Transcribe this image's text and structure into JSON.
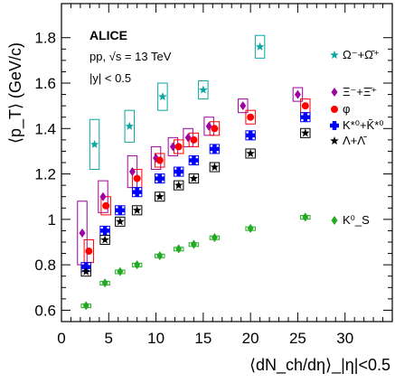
{
  "chart_data": {
    "type": "scatter",
    "title": "",
    "xlabel": "⟨dN_ch/dη⟩_|η|<0.5",
    "ylabel": "⟨p_T⟩ (GeV/c)",
    "xlim": [
      0,
      35
    ],
    "ylim": [
      0.55,
      1.95
    ],
    "x_ticks": [
      0,
      5,
      10,
      15,
      20,
      25,
      30
    ],
    "y_ticks": [
      0.6,
      0.8,
      1.0,
      1.2,
      1.4,
      1.6,
      1.8
    ],
    "y_tick_labels": [
      "0.6",
      "0.8",
      "1",
      "1.2",
      "1.4",
      "1.6",
      "1.8"
    ],
    "annotations": [
      "ALICE",
      "pp, √s = 13 TeV",
      "|y| < 0.5"
    ],
    "legend_position": "right",
    "series": [
      {
        "name": "Ω⁻+Ω̄⁺",
        "color": "#0aa6a0",
        "marker": "star",
        "points": [
          {
            "x": 3.5,
            "y": 1.33,
            "sysx": 0.5,
            "sysy": 0.11
          },
          {
            "x": 7.2,
            "y": 1.41,
            "sysx": 0.5,
            "sysy": 0.07
          },
          {
            "x": 10.7,
            "y": 1.54,
            "sysx": 0.5,
            "sysy": 0.06
          },
          {
            "x": 15.0,
            "y": 1.57,
            "sysx": 0.5,
            "sysy": 0.04
          },
          {
            "x": 21.0,
            "y": 1.76,
            "sysx": 0.5,
            "sysy": 0.05
          }
        ]
      },
      {
        "name": "Ξ⁻+Ξ̄⁺",
        "color": "#a000a0",
        "marker": "diamond",
        "points": [
          {
            "x": 2.2,
            "y": 0.94,
            "sysx": 0.5,
            "sysy": 0.14
          },
          {
            "x": 4.4,
            "y": 1.1,
            "sysx": 0.5,
            "sysy": 0.07
          },
          {
            "x": 7.5,
            "y": 1.21,
            "sysx": 0.5,
            "sysy": 0.07
          },
          {
            "x": 10.0,
            "y": 1.27,
            "sysx": 0.5,
            "sysy": 0.05
          },
          {
            "x": 11.8,
            "y": 1.32,
            "sysx": 0.5,
            "sysy": 0.04
          },
          {
            "x": 13.4,
            "y": 1.36,
            "sysx": 0.5,
            "sysy": 0.04
          },
          {
            "x": 15.6,
            "y": 1.41,
            "sysx": 0.5,
            "sysy": 0.04
          },
          {
            "x": 19.2,
            "y": 1.5,
            "sysx": 0.5,
            "sysy": 0.03
          },
          {
            "x": 25.0,
            "y": 1.55,
            "sysx": 0.5,
            "sysy": 0.03
          }
        ]
      },
      {
        "name": "φ",
        "color": "#ff0000",
        "marker": "circle",
        "points": [
          {
            "x": 2.9,
            "y": 0.86,
            "sysx": 0.5,
            "sysy": 0.05
          },
          {
            "x": 4.7,
            "y": 1.06,
            "sysx": 0.5,
            "sysy": 0.04
          },
          {
            "x": 8.0,
            "y": 1.18,
            "sysx": 0.5,
            "sysy": 0.04
          },
          {
            "x": 10.4,
            "y": 1.26,
            "sysx": 0.5,
            "sysy": 0.03
          },
          {
            "x": 12.4,
            "y": 1.32,
            "sysx": 0.5,
            "sysy": 0.03
          },
          {
            "x": 14.0,
            "y": 1.35,
            "sysx": 0.5,
            "sysy": 0.03
          },
          {
            "x": 16.2,
            "y": 1.4,
            "sysx": 0.5,
            "sysy": 0.03
          },
          {
            "x": 20.0,
            "y": 1.45,
            "sysx": 0.5,
            "sysy": 0.03
          },
          {
            "x": 25.8,
            "y": 1.5,
            "sysx": 0.5,
            "sysy": 0.03
          }
        ]
      },
      {
        "name": "K*⁰+K̄*⁰",
        "color": "#0000ff",
        "marker": "plus",
        "points": [
          {
            "x": 2.6,
            "y": 0.79,
            "sysx": 0.5,
            "sysy": 0.02
          },
          {
            "x": 4.6,
            "y": 0.95,
            "sysx": 0.5,
            "sysy": 0.02
          },
          {
            "x": 6.2,
            "y": 1.04,
            "sysx": 0.5,
            "sysy": 0.02
          },
          {
            "x": 8.0,
            "y": 1.12,
            "sysx": 0.5,
            "sysy": 0.02
          },
          {
            "x": 10.4,
            "y": 1.18,
            "sysx": 0.5,
            "sysy": 0.02
          },
          {
            "x": 12.4,
            "y": 1.21,
            "sysx": 0.5,
            "sysy": 0.02
          },
          {
            "x": 14.0,
            "y": 1.26,
            "sysx": 0.5,
            "sysy": 0.02
          },
          {
            "x": 16.2,
            "y": 1.31,
            "sysx": 0.5,
            "sysy": 0.02
          },
          {
            "x": 20.0,
            "y": 1.37,
            "sysx": 0.5,
            "sysy": 0.02
          },
          {
            "x": 25.8,
            "y": 1.45,
            "sysx": 0.5,
            "sysy": 0.02
          }
        ]
      },
      {
        "name": "Λ+Λ̄",
        "color": "#000000",
        "marker": "star",
        "points": [
          {
            "x": 2.6,
            "y": 0.77,
            "sysx": 0.5,
            "sysy": 0.02
          },
          {
            "x": 4.6,
            "y": 0.91,
            "sysx": 0.5,
            "sysy": 0.02
          },
          {
            "x": 6.2,
            "y": 0.99,
            "sysx": 0.5,
            "sysy": 0.02
          },
          {
            "x": 8.0,
            "y": 1.04,
            "sysx": 0.5,
            "sysy": 0.02
          },
          {
            "x": 10.4,
            "y": 1.1,
            "sysx": 0.5,
            "sysy": 0.02
          },
          {
            "x": 12.4,
            "y": 1.15,
            "sysx": 0.5,
            "sysy": 0.02
          },
          {
            "x": 14.0,
            "y": 1.18,
            "sysx": 0.5,
            "sysy": 0.02
          },
          {
            "x": 16.2,
            "y": 1.23,
            "sysx": 0.5,
            "sysy": 0.02
          },
          {
            "x": 20.0,
            "y": 1.29,
            "sysx": 0.5,
            "sysy": 0.02
          },
          {
            "x": 25.8,
            "y": 1.38,
            "sysx": 0.5,
            "sysy": 0.02
          }
        ]
      },
      {
        "name": "K⁰_S",
        "color": "#22aa22",
        "marker": "diamond",
        "points": [
          {
            "x": 2.6,
            "y": 0.62,
            "sysx": 0.5,
            "sysy": 0.007
          },
          {
            "x": 4.6,
            "y": 0.72,
            "sysx": 0.5,
            "sysy": 0.007
          },
          {
            "x": 6.2,
            "y": 0.77,
            "sysx": 0.5,
            "sysy": 0.007
          },
          {
            "x": 8.0,
            "y": 0.8,
            "sysx": 0.5,
            "sysy": 0.007
          },
          {
            "x": 10.4,
            "y": 0.84,
            "sysx": 0.5,
            "sysy": 0.007
          },
          {
            "x": 12.4,
            "y": 0.87,
            "sysx": 0.5,
            "sysy": 0.007
          },
          {
            "x": 14.0,
            "y": 0.89,
            "sysx": 0.5,
            "sysy": 0.007
          },
          {
            "x": 16.2,
            "y": 0.92,
            "sysx": 0.5,
            "sysy": 0.007
          },
          {
            "x": 20.0,
            "y": 0.96,
            "sysx": 0.5,
            "sysy": 0.007
          },
          {
            "x": 25.8,
            "y": 1.01,
            "sysx": 0.5,
            "sysy": 0.007
          }
        ]
      }
    ]
  }
}
